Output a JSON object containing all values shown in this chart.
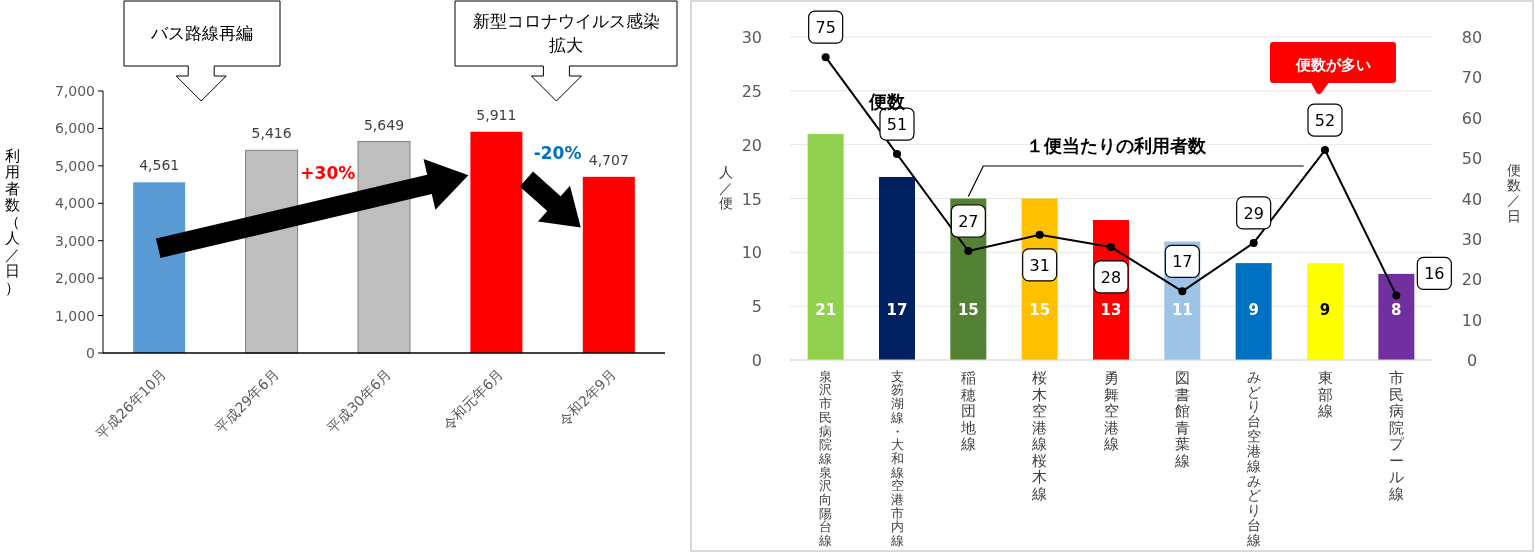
{
  "chart_data": [
    {
      "type": "bar",
      "ylabel": "利用者数（人／日）",
      "categories": [
        "平成26年10月",
        "平成29年6月",
        "平成30年6月",
        "令和元年6月",
        "令和2年9月"
      ],
      "values": [
        4561,
        5416,
        5649,
        5911,
        4707
      ],
      "value_labels": [
        "4,561",
        "5,416",
        "5,649",
        "5,911",
        "4,707"
      ],
      "colors": [
        "#5b9bd5",
        "#bfbfbf",
        "#bfbfbf",
        "#ff0000",
        "#ff0000"
      ],
      "ylim": [
        0,
        7000
      ],
      "yticks": [
        0,
        {
          "value": 1000,
          "label": "1,000"
        },
        {
          "value": 2000,
          "label": "2,000"
        },
        {
          "value": 3000,
          "label": "3,000"
        },
        {
          "value": 4000,
          "label": "4,000"
        },
        {
          "value": 5000,
          "label": "5,000"
        },
        {
          "value": 6000,
          "label": "6,000"
        },
        {
          "value": 7000,
          "label": "7,000"
        }
      ],
      "annotations": [
        "バス路線再編",
        "新型コロナウイルス感染拡大",
        "+30%",
        {
          "text": "-20%",
          "x": "令和2年9月",
          "y": 4707
        }
      ]
    },
    {
      "type": "bar",
      "ylabel": "人／便",
      "y2label": "便数／日",
      "categories": [
        "泉沢市民病院線泉沢向陽台線",
        "支笏湖線・大和線空港市内線",
        "稲穂団地線",
        "桜木空港線桜木線",
        "勇舞空港線",
        "図書館青葉線",
        "みどり台空港線みどり台線",
        "東部線",
        "市民病院プール線"
      ],
      "series": [
        {
          "name": "１便当たりの利用者数",
          "type": "bar",
          "colors": [
            "#92d050",
            "#002060",
            "#548235",
            "#ffc000",
            "#ff0000",
            "#9dc3e6",
            "#0070c0",
            "#ffff00",
            "#7030a0"
          ],
          "values": [
            21,
            17,
            15,
            15,
            13,
            11,
            9,
            9,
            8
          ]
        },
        {
          "name": "便数",
          "type": "line",
          "axis": "y2",
          "color": "#000000",
          "values": [
            75,
            51,
            27,
            31,
            28,
            17,
            29,
            52,
            16
          ]
        }
      ],
      "ylim": [
        0,
        30
      ],
      "yticks": [
        0,
        5,
        10,
        15,
        20,
        25,
        30
      ],
      "y2lim": [
        0,
        80
      ],
      "y2ticks": [
        0,
        10,
        20,
        30,
        40,
        50,
        60,
        70,
        80
      ],
      "grid": "y",
      "marker": "circle",
      "data_labels": true,
      "legend": false,
      "annotations": [
        "便数が多い"
      ]
    }
  ]
}
